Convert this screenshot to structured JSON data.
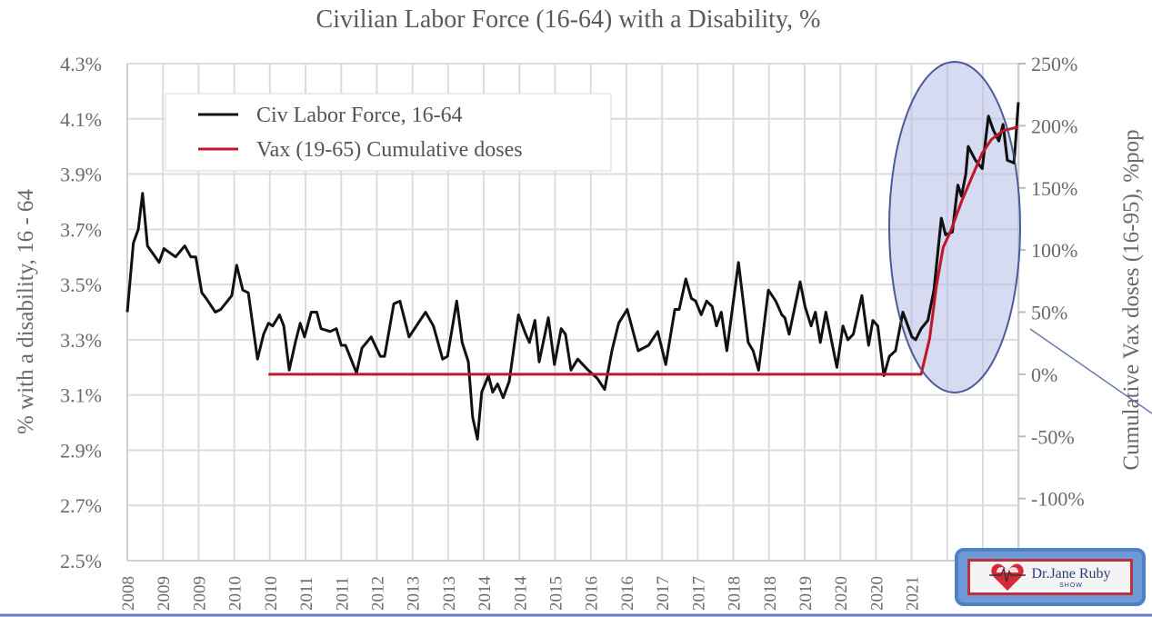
{
  "chart_data": {
    "type": "line",
    "title": "Civilian Labor Force (16-64) with a Disability, %",
    "ylabel": "% with a disability, 16 - 64",
    "ylabel_right": "Cumulative Vax doses (16-95), %pop",
    "ylim": [
      2.5,
      4.3
    ],
    "ylim_right": [
      -150,
      250
    ],
    "xlim": [
      2008.0,
      2022.58
    ],
    "y_ticks": [
      "4.3%",
      "4.1%",
      "3.9%",
      "3.7%",
      "3.5%",
      "3.3%",
      "3.1%",
      "2.9%",
      "2.7%",
      "2.5%"
    ],
    "y_tick_values": [
      4.3,
      4.1,
      3.9,
      3.7,
      3.5,
      3.3,
      3.1,
      2.9,
      2.7,
      2.5
    ],
    "y_right_ticks": [
      "250%",
      "200%",
      "150%",
      "100%",
      "50%",
      "0%",
      "-50%",
      "-100%"
    ],
    "y_right_tick_values": [
      250,
      200,
      150,
      100,
      50,
      0,
      -50,
      -100
    ],
    "x_ticks": [
      "2008",
      "2009",
      "2009",
      "2010",
      "2010",
      "2011",
      "2011",
      "2012",
      "2013",
      "2013",
      "2014",
      "2014",
      "2015",
      "2016",
      "2016",
      "2017",
      "2017",
      "2018",
      "2018",
      "2019",
      "2020",
      "2020",
      "2021"
    ],
    "grid": true,
    "legend_position": "top-left",
    "series": [
      {
        "name": "Civ Labor Force, 16-64",
        "axis": "left",
        "color": "#111111",
        "x": [
          2008.0,
          2008.1,
          2008.18,
          2008.25,
          2008.33,
          2008.52,
          2008.6,
          2008.79,
          2008.94,
          2009.04,
          2009.12,
          2009.22,
          2009.29,
          2009.44,
          2009.53,
          2009.71,
          2009.79,
          2009.89,
          2009.98,
          2010.13,
          2010.23,
          2010.31,
          2010.38,
          2010.49,
          2010.56,
          2010.65,
          2010.75,
          2010.83,
          2010.9,
          2011.01,
          2011.1,
          2011.17,
          2011.32,
          2011.42,
          2011.5,
          2011.57,
          2011.75,
          2011.84,
          2011.99,
          2012.14,
          2012.21,
          2012.36,
          2012.46,
          2012.61,
          2012.88,
          2013.01,
          2013.16,
          2013.24,
          2013.39,
          2013.48,
          2013.58,
          2013.65,
          2013.73,
          2013.8,
          2013.91,
          2013.98,
          2014.06,
          2014.15,
          2014.25,
          2014.4,
          2014.52,
          2014.58,
          2014.67,
          2014.74,
          2014.89,
          2014.99,
          2015.1,
          2015.17,
          2015.26,
          2015.37,
          2015.54,
          2015.69,
          2015.81,
          2015.93,
          2016.04,
          2016.18,
          2016.36,
          2016.53,
          2016.68,
          2016.81,
          2016.96,
          2017.03,
          2017.14,
          2017.23,
          2017.3,
          2017.39,
          2017.48,
          2017.57,
          2017.64,
          2017.72,
          2017.81,
          2018.0,
          2018.16,
          2018.24,
          2018.33,
          2018.49,
          2018.61,
          2018.71,
          2018.76,
          2018.83,
          2019.01,
          2019.09,
          2019.19,
          2019.26,
          2019.34,
          2019.43,
          2019.61,
          2019.71,
          2019.79,
          2019.88,
          2020.02,
          2020.13,
          2020.2,
          2020.28,
          2020.38,
          2020.47,
          2020.57,
          2020.69,
          2020.84,
          2020.9,
          2020.99,
          2021.1,
          2021.2,
          2021.32,
          2021.39,
          2021.5,
          2021.59,
          2021.65,
          2021.72,
          2021.76,
          2021.88,
          2021.99,
          2022.09,
          2022.17,
          2022.26,
          2022.33,
          2022.4,
          2022.51,
          2022.58
        ],
        "values": [
          3.4,
          3.65,
          3.7,
          3.83,
          3.64,
          3.58,
          3.63,
          3.6,
          3.64,
          3.6,
          3.6,
          3.47,
          3.45,
          3.4,
          3.41,
          3.46,
          3.57,
          3.48,
          3.47,
          3.23,
          3.32,
          3.36,
          3.35,
          3.39,
          3.35,
          3.19,
          3.29,
          3.36,
          3.31,
          3.4,
          3.4,
          3.34,
          3.33,
          3.34,
          3.28,
          3.28,
          3.18,
          3.27,
          3.31,
          3.24,
          3.24,
          3.43,
          3.44,
          3.31,
          3.4,
          3.35,
          3.23,
          3.24,
          3.44,
          3.29,
          3.22,
          3.02,
          2.94,
          3.11,
          3.17,
          3.11,
          3.14,
          3.09,
          3.15,
          3.39,
          3.32,
          3.29,
          3.37,
          3.22,
          3.38,
          3.21,
          3.34,
          3.32,
          3.19,
          3.23,
          3.19,
          3.16,
          3.12,
          3.26,
          3.36,
          3.41,
          3.26,
          3.28,
          3.33,
          3.21,
          3.41,
          3.41,
          3.52,
          3.45,
          3.44,
          3.39,
          3.44,
          3.42,
          3.35,
          3.4,
          3.26,
          3.58,
          3.29,
          3.26,
          3.19,
          3.48,
          3.44,
          3.39,
          3.38,
          3.32,
          3.51,
          3.42,
          3.35,
          3.4,
          3.29,
          3.4,
          3.2,
          3.35,
          3.3,
          3.32,
          3.46,
          3.28,
          3.37,
          3.35,
          3.17,
          3.24,
          3.26,
          3.4,
          3.31,
          3.3,
          3.34,
          3.37,
          3.48,
          3.74,
          3.68,
          3.69,
          3.86,
          3.82,
          3.9,
          4.0,
          3.95,
          3.92,
          4.11,
          4.06,
          4.02,
          4.08,
          3.95,
          3.94,
          4.16
        ]
      },
      {
        "name": "Vax (19-65) Cumulative doses",
        "axis": "right",
        "color": "#c0182a",
        "x": [
          2010.31,
          2020.99,
          2021.13,
          2021.24,
          2021.35,
          2021.47,
          2021.65,
          2021.84,
          2021.99,
          2022.14,
          2022.33,
          2022.58
        ],
        "values": [
          0,
          0,
          29,
          71,
          102,
          115,
          139,
          161,
          178,
          189,
          196,
          199
        ]
      }
    ]
  },
  "watermark": {
    "text": "Dr.Jane Ruby",
    "subtext": "SHOW"
  },
  "colors": {
    "highlight_fill": "#b4bde6",
    "highlight_stroke": "#4a5a9a",
    "logo_border": "#4f80c8",
    "logo_red": "#c0303a"
  }
}
